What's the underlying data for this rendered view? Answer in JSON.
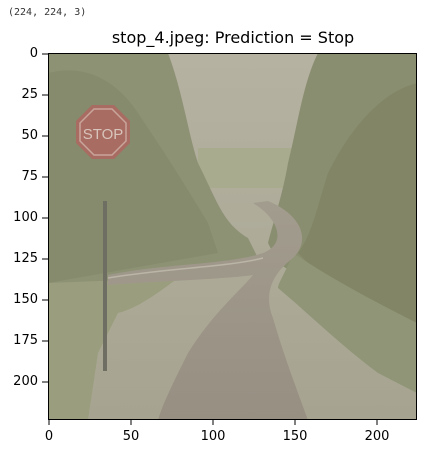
{
  "notebook_output": {
    "stdout_text": "(224, 224, 3)"
  },
  "figure": {
    "title": "stop_4.jpeg: Prediction = Stop",
    "image_description_icon": "stop-sign-road-photo",
    "y_ticks": [
      "0",
      "25",
      "50",
      "75",
      "100",
      "125",
      "150",
      "175",
      "200"
    ],
    "x_ticks": [
      "0",
      "50",
      "100",
      "150",
      "200"
    ]
  }
}
